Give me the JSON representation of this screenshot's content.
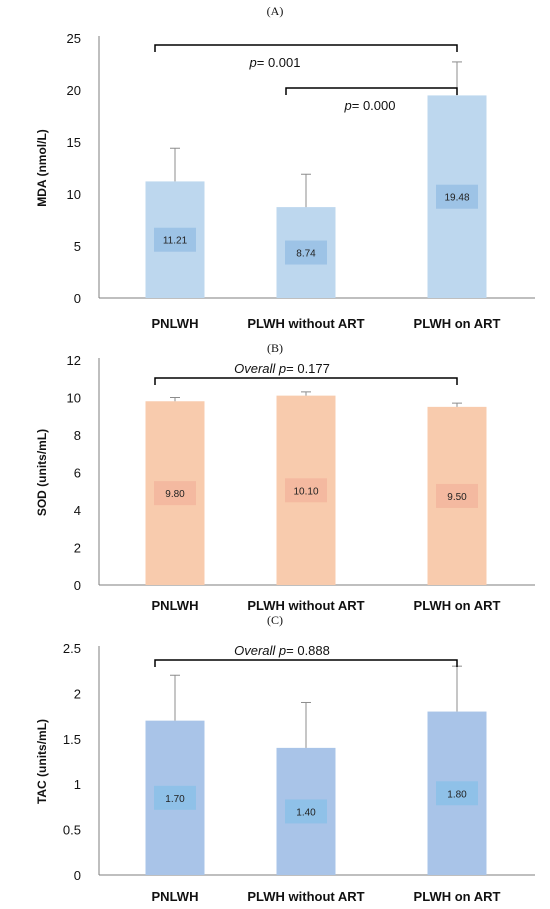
{
  "chart_data": [
    {
      "type": "bar",
      "panel": "(A)",
      "title": "",
      "xlabel": "",
      "ylabel": "MDA (nmol/L)",
      "ylim": [
        0,
        25
      ],
      "yticks": [
        0,
        5,
        10,
        15,
        20,
        25
      ],
      "yticks_text": [
        "0",
        "5",
        "10",
        "15",
        "20",
        "25"
      ],
      "categories": [
        "PNLWH",
        "PLWH without ART",
        "PLWH on ART"
      ],
      "values": [
        11.21,
        8.74,
        19.48
      ],
      "value_labels": [
        "11.21",
        "8.74",
        "19.48"
      ],
      "error_upper": [
        14.4,
        11.9,
        22.7
      ],
      "bar_color": "#bdd7ee",
      "label_box_color": "#9dc3e6",
      "annotations": [
        {
          "from": 0,
          "to": 2,
          "italic": "p",
          "text": "= 0.001",
          "level": 0
        },
        {
          "from": 1,
          "to": 2,
          "italic": "p",
          "text": "= 0.000",
          "level": 1
        }
      ]
    },
    {
      "type": "bar",
      "panel": "(B)",
      "title": "",
      "xlabel": "",
      "ylabel": "SOD (units/mL)",
      "ylim": [
        0,
        12
      ],
      "yticks": [
        0,
        2,
        4,
        6,
        8,
        10,
        12
      ],
      "yticks_text": [
        "0",
        "2",
        "4",
        "6",
        "8",
        "10",
        "12"
      ],
      "categories": [
        "PNLWH",
        "PLWH without ART",
        "PLWH on ART"
      ],
      "values": [
        9.8,
        10.1,
        9.5
      ],
      "value_labels": [
        "9.80",
        "10.10",
        "9.50"
      ],
      "error_upper": [
        10.0,
        10.3,
        9.7
      ],
      "bar_color": "#f8cbad",
      "label_box_color": "#f4b9a0",
      "annotations": [
        {
          "from": 0,
          "to": 2,
          "italic": "Overall p",
          "text": "= 0.177",
          "level": 0
        }
      ]
    },
    {
      "type": "bar",
      "panel": "(C)",
      "title": "",
      "xlabel": "",
      "ylabel": "TAC (units/mL)",
      "ylim": [
        0,
        2.5
      ],
      "yticks": [
        0,
        0.5,
        1,
        1.5,
        2,
        2.5
      ],
      "yticks_text": [
        "0",
        "0.5",
        "1",
        "1.5",
        "2",
        "2.5"
      ],
      "categories": [
        "PNLWH",
        "PLWH without ART",
        "PLWH on ART"
      ],
      "values": [
        1.7,
        1.4,
        1.8
      ],
      "value_labels": [
        "1.70",
        "1.40",
        "1.80"
      ],
      "error_upper": [
        2.2,
        1.9,
        2.3
      ],
      "bar_color": "#a9c4e8",
      "label_box_color": "#8fc1e8",
      "annotations": [
        {
          "from": 0,
          "to": 2,
          "italic": "Overall p",
          "text": "= 0.888",
          "level": 0
        }
      ]
    }
  ]
}
